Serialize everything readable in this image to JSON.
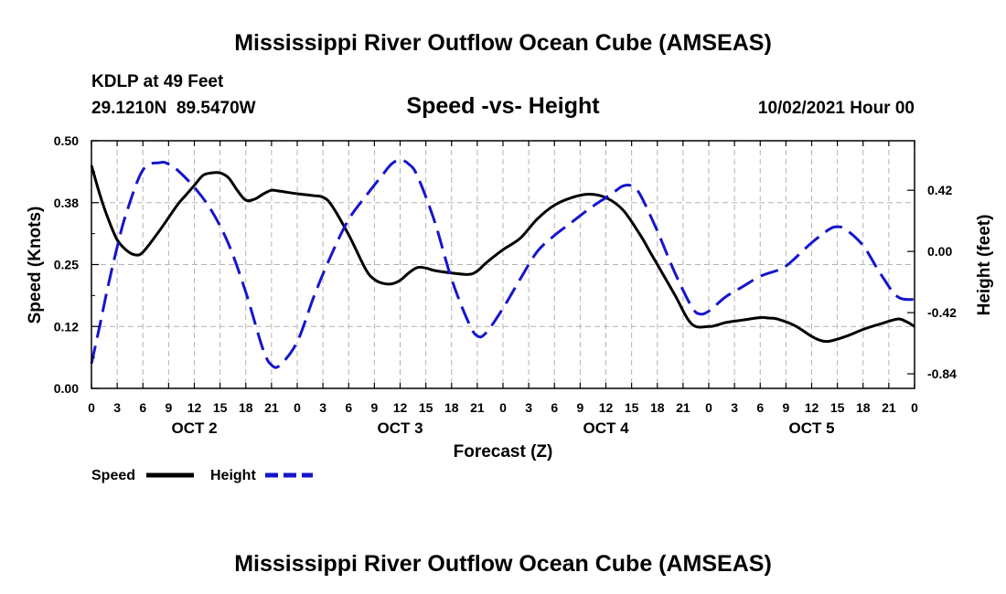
{
  "titles": {
    "top": "Mississippi River Outflow Ocean Cube (AMSEAS)",
    "bottom": "Mississippi River Outflow Ocean Cube (AMSEAS)"
  },
  "header": {
    "station": "KDLP at 49 Feet",
    "coords": "29.1210N  89.5470W",
    "subtitle": "Speed -vs- Height",
    "datetime": "10/02/2021 Hour 00"
  },
  "colors": {
    "speed": "#000000",
    "height": "#1515cc",
    "grid": "#b4b4b4"
  },
  "chart_data": {
    "type": "line",
    "title": "Speed -vs- Height",
    "xlabel": "Forecast (Z)",
    "ylabel": "Speed (Knots)",
    "y2label": "Height (feet)",
    "x_range": [
      0,
      96
    ],
    "ylim": [
      0,
      0.5
    ],
    "y2lim": [
      -0.94,
      0.76
    ],
    "y_ticks": [
      {
        "value": 0.0,
        "label": "0.00"
      },
      {
        "value": 0.125,
        "label": "0.12"
      },
      {
        "value": 0.25,
        "label": "0.25"
      },
      {
        "value": 0.375,
        "label": "0.38"
      },
      {
        "value": 0.5,
        "label": "0.50"
      }
    ],
    "y2_ticks": [
      {
        "value": 0.42,
        "label": "0.42"
      },
      {
        "value": 0.0,
        "label": "0.00"
      },
      {
        "value": -0.42,
        "label": "-0.42"
      },
      {
        "value": -0.84,
        "label": "-0.84"
      }
    ],
    "x_ticks": [
      {
        "hour": 0,
        "label": "0"
      },
      {
        "hour": 3,
        "label": "3"
      },
      {
        "hour": 6,
        "label": "6"
      },
      {
        "hour": 9,
        "label": "9"
      },
      {
        "hour": 12,
        "label": "12"
      },
      {
        "hour": 15,
        "label": "15"
      },
      {
        "hour": 18,
        "label": "18"
      },
      {
        "hour": 21,
        "label": "21"
      },
      {
        "hour": 24,
        "label": "0"
      },
      {
        "hour": 27,
        "label": "3"
      },
      {
        "hour": 30,
        "label": "6"
      },
      {
        "hour": 33,
        "label": "9"
      },
      {
        "hour": 36,
        "label": "12"
      },
      {
        "hour": 39,
        "label": "15"
      },
      {
        "hour": 42,
        "label": "18"
      },
      {
        "hour": 45,
        "label": "21"
      },
      {
        "hour": 48,
        "label": "0"
      },
      {
        "hour": 51,
        "label": "3"
      },
      {
        "hour": 54,
        "label": "6"
      },
      {
        "hour": 57,
        "label": "9"
      },
      {
        "hour": 60,
        "label": "12"
      },
      {
        "hour": 63,
        "label": "15"
      },
      {
        "hour": 66,
        "label": "18"
      },
      {
        "hour": 69,
        "label": "21"
      },
      {
        "hour": 72,
        "label": "0"
      },
      {
        "hour": 75,
        "label": "3"
      },
      {
        "hour": 78,
        "label": "6"
      },
      {
        "hour": 81,
        "label": "9"
      },
      {
        "hour": 84,
        "label": "12"
      },
      {
        "hour": 87,
        "label": "15"
      },
      {
        "hour": 90,
        "label": "18"
      },
      {
        "hour": 93,
        "label": "21"
      },
      {
        "hour": 96,
        "label": "0"
      }
    ],
    "day_labels": [
      {
        "hour": 12,
        "label": "OCT 2"
      },
      {
        "hour": 36,
        "label": "OCT 3"
      },
      {
        "hour": 60,
        "label": "OCT 4"
      },
      {
        "hour": 84,
        "label": "OCT 5"
      }
    ],
    "legend": {
      "placement": "bottom-left"
    },
    "series": [
      {
        "name": "Speed",
        "axis": "left",
        "style": "solid",
        "x": [
          0,
          1,
          2,
          3,
          4,
          5,
          6,
          8,
          10,
          11,
          12,
          13,
          14,
          15,
          16,
          17,
          18,
          19,
          20,
          21,
          22,
          24,
          26,
          27,
          28,
          30,
          32,
          33,
          34,
          35,
          36,
          37,
          38,
          39,
          40,
          42,
          44,
          45,
          46,
          48,
          50,
          52,
          54,
          56,
          58,
          60,
          62,
          64,
          65,
          66,
          68,
          70,
          72,
          73,
          74,
          76,
          78,
          79,
          80,
          82,
          84,
          85,
          86,
          88,
          90,
          92,
          94,
          95,
          96
        ],
        "values": [
          0.45,
          0.39,
          0.34,
          0.3,
          0.28,
          0.27,
          0.275,
          0.32,
          0.37,
          0.39,
          0.41,
          0.43,
          0.435,
          0.435,
          0.425,
          0.4,
          0.38,
          0.382,
          0.392,
          0.4,
          0.398,
          0.393,
          0.389,
          0.386,
          0.37,
          0.31,
          0.24,
          0.22,
          0.212,
          0.211,
          0.218,
          0.233,
          0.244,
          0.243,
          0.238,
          0.233,
          0.23,
          0.237,
          0.253,
          0.28,
          0.303,
          0.342,
          0.37,
          0.385,
          0.392,
          0.385,
          0.36,
          0.31,
          0.28,
          0.25,
          0.19,
          0.13,
          0.125,
          0.128,
          0.133,
          0.138,
          0.143,
          0.142,
          0.14,
          0.127,
          0.105,
          0.097,
          0.095,
          0.105,
          0.119,
          0.13,
          0.14,
          0.135,
          0.125
        ]
      },
      {
        "name": "Height",
        "axis": "right",
        "style": "dashed",
        "x": [
          0,
          1,
          2,
          3,
          4,
          6,
          8,
          9,
          10,
          12,
          14,
          16,
          18,
          20,
          21,
          22,
          24,
          26,
          28,
          30,
          32,
          34,
          35,
          36,
          37,
          38,
          40,
          42,
          44,
          45,
          46,
          48,
          50,
          52,
          54,
          56,
          58,
          60,
          61,
          62,
          63,
          64,
          66,
          68,
          70,
          71,
          72,
          73,
          74,
          76,
          78,
          80,
          81,
          82,
          84,
          86,
          87,
          88,
          90,
          92,
          94,
          96
        ],
        "values": [
          -0.77,
          -0.5,
          -0.22,
          0.03,
          0.25,
          0.56,
          0.61,
          0.6,
          0.56,
          0.44,
          0.28,
          0.05,
          -0.28,
          -0.67,
          -0.78,
          -0.78,
          -0.62,
          -0.3,
          -0.02,
          0.22,
          0.38,
          0.53,
          0.6,
          0.63,
          0.6,
          0.52,
          0.21,
          -0.19,
          -0.49,
          -0.58,
          -0.56,
          -0.39,
          -0.19,
          0.0,
          0.11,
          0.2,
          0.29,
          0.37,
          0.41,
          0.45,
          0.45,
          0.39,
          0.14,
          -0.14,
          -0.38,
          -0.43,
          -0.41,
          -0.36,
          -0.31,
          -0.24,
          -0.17,
          -0.13,
          -0.1,
          -0.05,
          0.06,
          0.15,
          0.17,
          0.15,
          0.04,
          -0.15,
          -0.31,
          -0.33
        ]
      }
    ]
  },
  "axis_titles": {
    "x": "Forecast (Z)",
    "y_left": "Speed (Knots)",
    "y_right": "Height (feet)"
  },
  "legend": {
    "speed_label": "Speed",
    "height_label": "Height"
  }
}
